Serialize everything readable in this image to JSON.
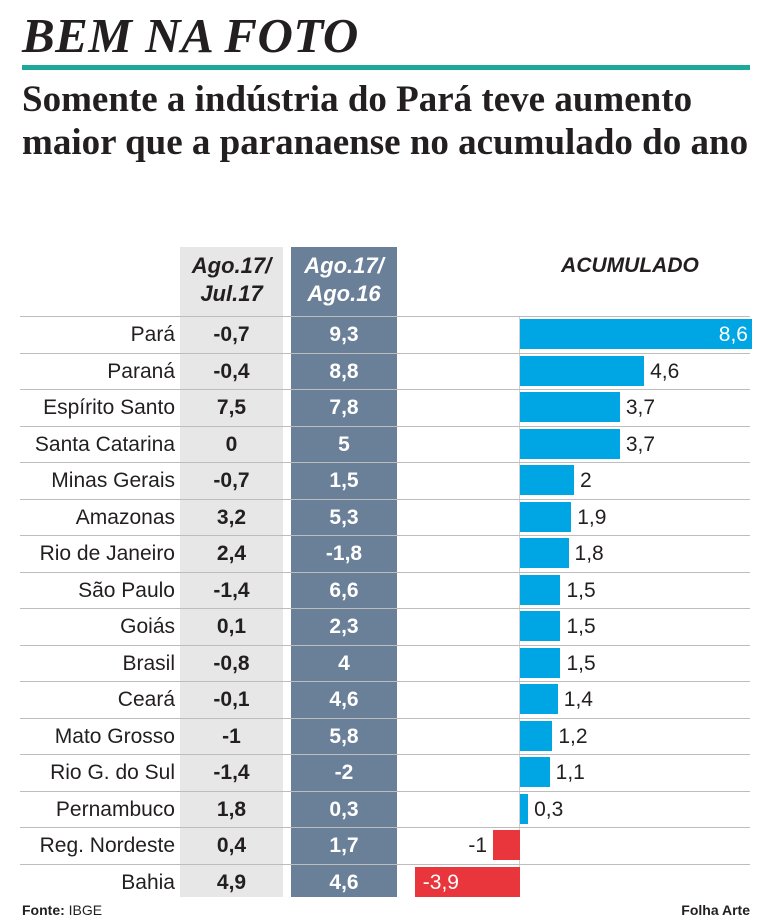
{
  "kicker": "BEM NA FOTO",
  "headline": "Somente a indústria do Pará teve aumento maior que a paranaense no acumulado do ano",
  "columns": {
    "col1_line1": "Ago.17/",
    "col1_line2": "Jul.17",
    "col2_line1": "Ago.17/",
    "col2_line2": "Ago.16",
    "accumulated": "ACUMULADO"
  },
  "footer": {
    "source_label": "Fonte:",
    "source_value": "IBGE",
    "credit": "Folha Arte"
  },
  "colors": {
    "positive_bar": "#00a6e4",
    "negative_bar": "#e8363c",
    "highlight_teal": "#1da89a",
    "column2_bg": "#6a7f98"
  },
  "chart_data": {
    "type": "table",
    "title": "ACUMULADO",
    "columns": [
      "Ago.17/Jul.17",
      "Ago.17/Ago.16",
      "ACUMULADO"
    ],
    "rows": [
      {
        "region": "Pará",
        "m_m": "-0,7",
        "y_y": "9,3",
        "acc": 8.6,
        "acc_label": "8,6"
      },
      {
        "region": "Paraná",
        "m_m": "-0,4",
        "y_y": "8,8",
        "acc": 4.6,
        "acc_label": "4,6"
      },
      {
        "region": "Espírito Santo",
        "m_m": "7,5",
        "y_y": "7,8",
        "acc": 3.7,
        "acc_label": "3,7"
      },
      {
        "region": "Santa Catarina",
        "m_m": "0",
        "y_y": "5",
        "acc": 3.7,
        "acc_label": "3,7"
      },
      {
        "region": "Minas Gerais",
        "m_m": "-0,7",
        "y_y": "1,5",
        "acc": 2,
        "acc_label": "2"
      },
      {
        "region": "Amazonas",
        "m_m": "3,2",
        "y_y": "5,3",
        "acc": 1.9,
        "acc_label": "1,9"
      },
      {
        "region": "Rio de Janeiro",
        "m_m": "2,4",
        "y_y": "-1,8",
        "acc": 1.8,
        "acc_label": "1,8"
      },
      {
        "region": "São Paulo",
        "m_m": "-1,4",
        "y_y": "6,6",
        "acc": 1.5,
        "acc_label": "1,5"
      },
      {
        "region": "Goiás",
        "m_m": "0,1",
        "y_y": "2,3",
        "acc": 1.5,
        "acc_label": "1,5"
      },
      {
        "region": "Brasil",
        "m_m": "-0,8",
        "y_y": "4",
        "acc": 1.5,
        "acc_label": "1,5"
      },
      {
        "region": "Ceará",
        "m_m": "-0,1",
        "y_y": "4,6",
        "acc": 1.4,
        "acc_label": "1,4"
      },
      {
        "region": "Mato Grosso",
        "m_m": "-1",
        "y_y": "5,8",
        "acc": 1.2,
        "acc_label": "1,2"
      },
      {
        "region": "Rio G. do Sul",
        "m_m": "-1,4",
        "y_y": "-2",
        "acc": 1.1,
        "acc_label": "1,1"
      },
      {
        "region": "Pernambuco",
        "m_m": "1,8",
        "y_y": "0,3",
        "acc": 0.3,
        "acc_label": "0,3"
      },
      {
        "region": "Reg. Nordeste",
        "m_m": "0,4",
        "y_y": "1,7",
        "acc": -1,
        "acc_label": "-1"
      },
      {
        "region": "Bahia",
        "m_m": "4,9",
        "y_y": "4,6",
        "acc": -3.9,
        "acc_label": "-3,9"
      }
    ]
  }
}
